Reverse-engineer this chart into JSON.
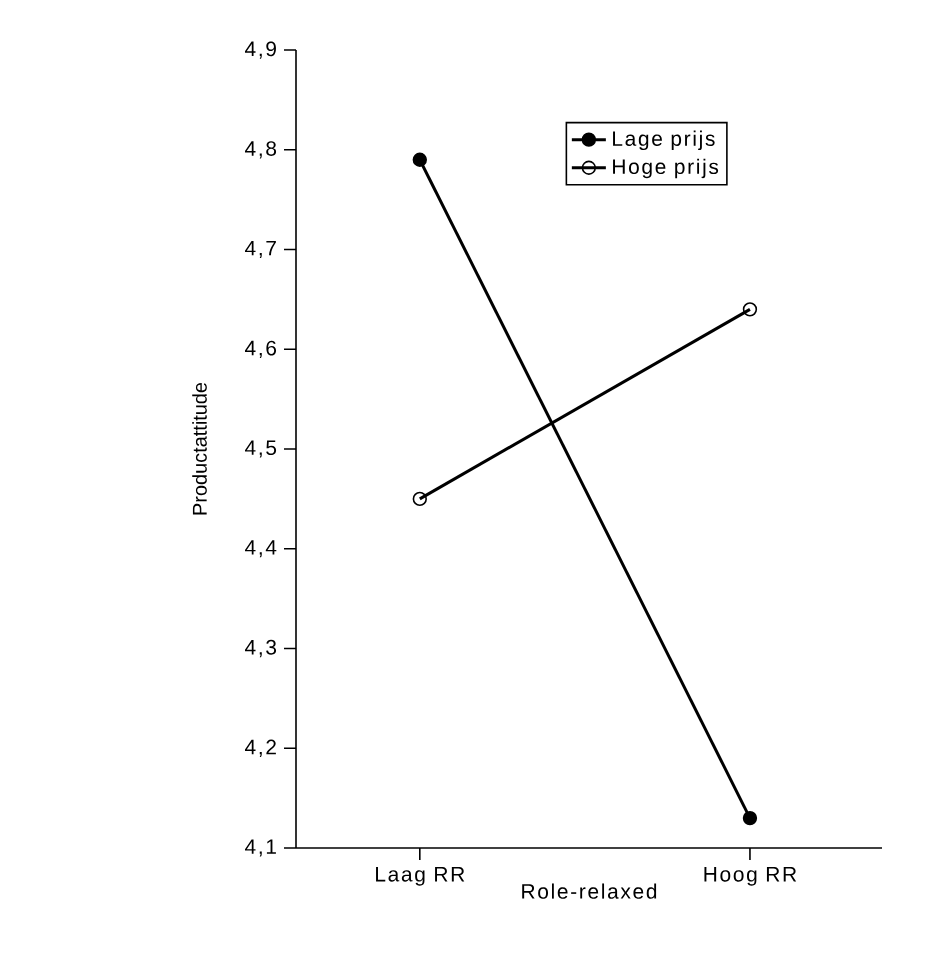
{
  "chart_data": {
    "type": "line",
    "xlabel": "Role-relaxed",
    "ylabel": "Productattitude",
    "categories": [
      "Laag RR",
      "Hoog RR"
    ],
    "series": [
      {
        "name": "Lage prijs",
        "color": "#000000",
        "values": [
          4.79,
          4.13
        ]
      },
      {
        "name": "Hoge prijs",
        "color": "#000000",
        "values": [
          4.45,
          4.64
        ]
      }
    ],
    "ylim": [
      4.1,
      4.9
    ],
    "yticks": [
      {
        "value": 4.1,
        "label": "4,1"
      },
      {
        "value": 4.2,
        "label": "4,2"
      },
      {
        "value": 4.3,
        "label": "4,3"
      },
      {
        "value": 4.4,
        "label": "4,4"
      },
      {
        "value": 4.5,
        "label": "4,5"
      },
      {
        "value": 4.6,
        "label": "4,6"
      },
      {
        "value": 4.7,
        "label": "4,7"
      },
      {
        "value": 4.8,
        "label": "4,8"
      },
      {
        "value": 4.9,
        "label": "4,9"
      }
    ],
    "grid": false,
    "legend": "top right",
    "marker": "circle",
    "line_style": "solid"
  }
}
